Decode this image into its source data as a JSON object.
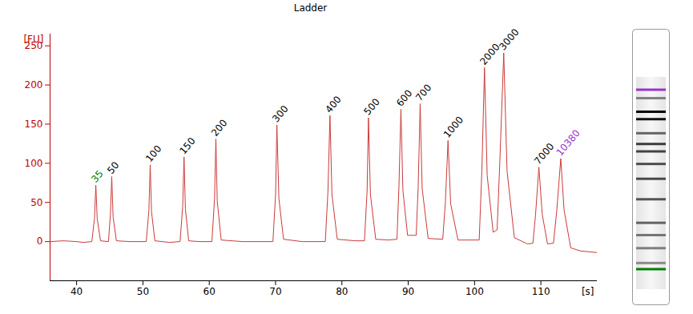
{
  "chart_data": {
    "type": "line",
    "title": "Ladder",
    "x_label": "[s]",
    "y_label": "[FU]",
    "color": "#cc3a3a",
    "xlim": [
      36,
      118.5
    ],
    "xticks": [
      40,
      50,
      60,
      70,
      80,
      90,
      100,
      110
    ],
    "ylim": [
      -50,
      265
    ],
    "yticks": [
      0,
      50,
      100,
      150,
      200,
      250
    ],
    "x": [
      36,
      38,
      40,
      41,
      42.3,
      42.7,
      42.9,
      43.1,
      43.6,
      44.8,
      45.1,
      45.3,
      45.5,
      46.0,
      48,
      50.5,
      50.9,
      51.1,
      51.3,
      51.8,
      54,
      55.6,
      56.0,
      56.2,
      56.4,
      56.9,
      58.5,
      60.4,
      60.8,
      61.0,
      61.2,
      61.8,
      65,
      69.6,
      70.0,
      70.2,
      70.5,
      71.2,
      74,
      77.5,
      77.9,
      78.2,
      78.5,
      79.3,
      82,
      83.4,
      83.8,
      84.0,
      84.3,
      85.1,
      87,
      88.3,
      88.6,
      88.9,
      89.2,
      89.9,
      91.2,
      91.5,
      91.8,
      92.1,
      93.0,
      95.2,
      95.6,
      96.0,
      96.4,
      97.5,
      100.7,
      101.1,
      101.5,
      101.9,
      102.8,
      103.4,
      103.8,
      104.4,
      104.9,
      106.0,
      108,
      108.8,
      109.2,
      109.7,
      110.2,
      111.0,
      111.9,
      112.4,
      113.0,
      113.5,
      114.5,
      116,
      118.5
    ],
    "values": [
      0,
      1,
      0,
      -1,
      0,
      30,
      72,
      30,
      1,
      0,
      35,
      83,
      32,
      1,
      0,
      0,
      40,
      98,
      38,
      1,
      -1,
      0,
      45,
      108,
      42,
      1,
      0,
      0,
      55,
      131,
      52,
      2,
      0,
      0,
      60,
      149,
      55,
      3,
      0,
      0,
      65,
      161,
      60,
      3,
      1,
      1,
      65,
      158,
      60,
      3,
      2,
      3,
      70,
      169,
      65,
      8,
      8,
      70,
      176,
      68,
      4,
      3,
      50,
      129,
      48,
      2,
      2,
      90,
      222,
      85,
      12,
      15,
      100,
      241,
      90,
      5,
      -3,
      -2,
      35,
      95,
      35,
      -3,
      -2,
      40,
      106,
      40,
      -8,
      -12,
      -14
    ],
    "peaks": [
      {
        "label": "35",
        "x": 42.9,
        "y": 72,
        "color": "#008000"
      },
      {
        "label": "50",
        "x": 45.3,
        "y": 83,
        "color": "black"
      },
      {
        "label": "100",
        "x": 51.1,
        "y": 98,
        "color": "black"
      },
      {
        "label": "150",
        "x": 56.2,
        "y": 108,
        "color": "black"
      },
      {
        "label": "200",
        "x": 61.0,
        "y": 131,
        "color": "black"
      },
      {
        "label": "300",
        "x": 70.2,
        "y": 149,
        "color": "black"
      },
      {
        "label": "400",
        "x": 78.2,
        "y": 161,
        "color": "black"
      },
      {
        "label": "500",
        "x": 84.0,
        "y": 158,
        "color": "black"
      },
      {
        "label": "600",
        "x": 88.9,
        "y": 169,
        "color": "black"
      },
      {
        "label": "700",
        "x": 91.8,
        "y": 176,
        "color": "black"
      },
      {
        "label": "1000",
        "x": 96.0,
        "y": 129,
        "color": "black"
      },
      {
        "label": "2000",
        "x": 101.5,
        "y": 222,
        "color": "black"
      },
      {
        "label": "3000",
        "x": 104.4,
        "y": 241,
        "color": "black"
      },
      {
        "label": "7000",
        "x": 109.7,
        "y": 95,
        "color": "black"
      },
      {
        "label": "10380",
        "x": 113.0,
        "y": 106,
        "color": "#9933cc"
      }
    ]
  }
}
